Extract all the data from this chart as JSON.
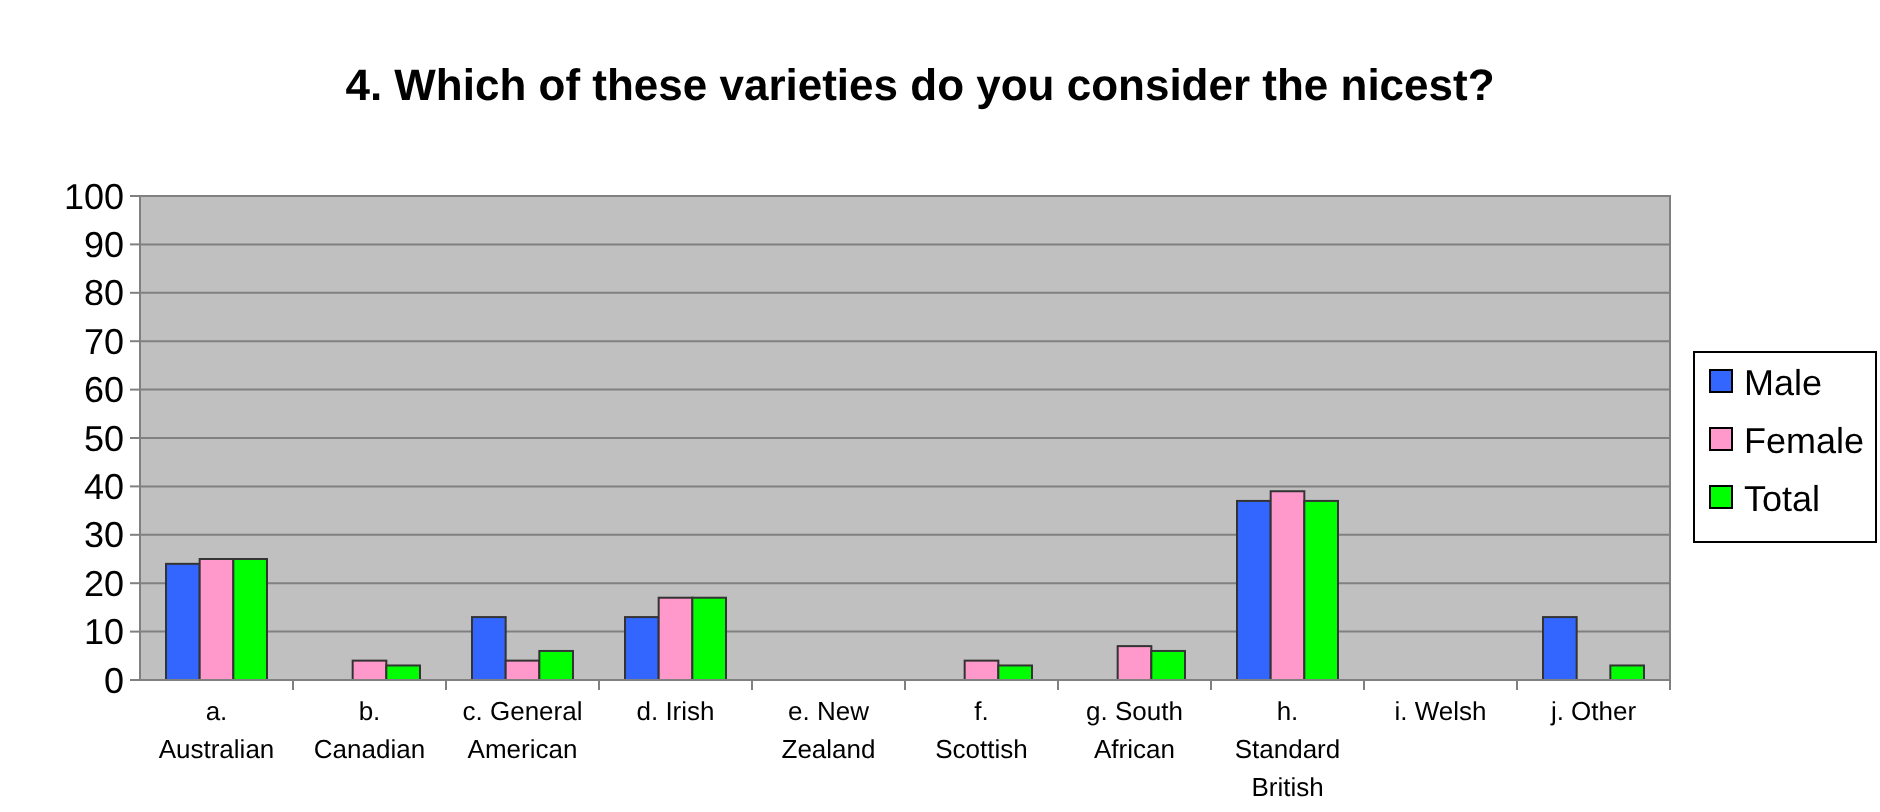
{
  "chart_data": {
    "type": "bar",
    "title": "4. Which of these varieties do you consider the nicest?",
    "categories": [
      "a. Australian",
      "b. Canadian",
      "c. General American",
      "d. Irish",
      "e. New Zealand",
      "f. Scottish",
      "g. South African",
      "h. Standard British",
      "i. Welsh",
      "j. Other"
    ],
    "series": [
      {
        "name": "Male",
        "color": "#3366ff",
        "values": [
          24,
          0,
          13,
          13,
          0,
          0,
          0,
          37,
          0,
          13
        ]
      },
      {
        "name": "Female",
        "color": "#ff99cc",
        "values": [
          25,
          4,
          4,
          17,
          0,
          4,
          7,
          39,
          0,
          0
        ]
      },
      {
        "name": "Total",
        "color": "#00ff00",
        "values": [
          25,
          3,
          6,
          17,
          0,
          3,
          6,
          37,
          0,
          3
        ]
      }
    ],
    "ylim": [
      0,
      100
    ],
    "yticks": [
      0,
      10,
      20,
      30,
      40,
      50,
      60,
      70,
      80,
      90,
      100
    ],
    "grid": "y",
    "legend": "right"
  }
}
